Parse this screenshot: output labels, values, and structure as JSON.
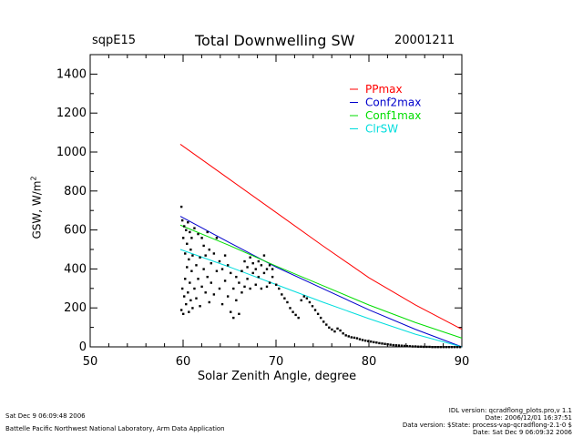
{
  "header": {
    "site": "sqpE15",
    "title": "Total Downwelling SW",
    "date": "20001211"
  },
  "footer": {
    "left_line1": "Sat Dec  9 06:09:48 2006",
    "left_line2": "Battelle Pacific Northwest National Laboratory, Arm Data Application",
    "right_line1": "IDL version: qcradflong_plots.pro,v 1.1",
    "right_line2": "Date: 2006/12/01 16:37:51",
    "right_line3": "Data version: $State: process-vap-qcradflong-2.1-0 $",
    "right_line4": "Date: Sat Dec  9 06:09:32 2006"
  },
  "colors": {
    "PPmax": "#ff0000",
    "Conf2max": "#0000cc",
    "Conf1max": "#00dd00",
    "ClrSW": "#00dddd",
    "points": "#000000",
    "axis": "#000000"
  },
  "chart_data": {
    "type": "scatter",
    "title": "Total Downwelling SW",
    "xlabel": "Solar Zenith Angle, degree",
    "ylabel": "GSW, W/m",
    "ylabel_sup": "2",
    "xlim": [
      50,
      90
    ],
    "ylim": [
      0,
      1500
    ],
    "xticks": [
      50,
      60,
      70,
      80,
      90
    ],
    "yticks": [
      0,
      200,
      400,
      600,
      800,
      1000,
      1200,
      1400
    ],
    "legend_position": "top-right",
    "series": [
      {
        "name": "PPmax",
        "kind": "line",
        "x": [
          59.7,
          65,
          70,
          75,
          80,
          85,
          90
        ],
        "y": [
          1040,
          860,
          690,
          520,
          355,
          215,
          90
        ]
      },
      {
        "name": "Conf2max",
        "kind": "line",
        "x": [
          59.7,
          65,
          70,
          75,
          80,
          85,
          90
        ],
        "y": [
          670,
          535,
          410,
          300,
          190,
          90,
          0
        ]
      },
      {
        "name": "Conf1max",
        "kind": "line",
        "x": [
          59.7,
          65,
          70,
          75,
          80,
          85,
          90
        ],
        "y": [
          625,
          520,
          415,
          315,
          215,
          125,
          45
        ]
      },
      {
        "name": "ClrSW",
        "kind": "line",
        "x": [
          59.7,
          65,
          70,
          75,
          80,
          85,
          90
        ],
        "y": [
          500,
          410,
          320,
          230,
          145,
          65,
          0
        ]
      },
      {
        "name": "observations",
        "kind": "points",
        "x": [
          59.8,
          59.8,
          59.9,
          59.9,
          60.0,
          60.0,
          60.1,
          60.1,
          60.2,
          60.2,
          60.3,
          60.3,
          60.4,
          60.4,
          60.5,
          60.5,
          60.6,
          60.6,
          60.7,
          60.7,
          60.8,
          60.8,
          60.9,
          60.9,
          61.0,
          61.0,
          61.2,
          61.2,
          61.4,
          61.4,
          61.6,
          61.6,
          61.8,
          61.8,
          62.0,
          62.0,
          62.2,
          62.2,
          62.4,
          62.4,
          62.6,
          62.6,
          62.8,
          62.8,
          63.0,
          63.0,
          63.3,
          63.3,
          63.6,
          63.6,
          63.9,
          63.9,
          64.2,
          64.2,
          64.5,
          64.5,
          64.8,
          64.8,
          65.1,
          65.1,
          65.4,
          65.4,
          65.7,
          65.7,
          66.0,
          66.0,
          66.3,
          66.3,
          66.6,
          66.6,
          66.9,
          66.9,
          67.2,
          67.2,
          67.5,
          67.5,
          67.8,
          67.8,
          68.1,
          68.1,
          68.4,
          68.4,
          68.7,
          68.7,
          69.0,
          69.0,
          69.3,
          69.3,
          69.6,
          69.6,
          70.0,
          70.3,
          70.6,
          70.9,
          71.2,
          71.5,
          71.8,
          72.1,
          72.4,
          72.7,
          73.0,
          73.3,
          73.6,
          73.9,
          74.2,
          74.5,
          74.8,
          75.1,
          75.4,
          75.7,
          76.0,
          76.3,
          76.6,
          76.9,
          77.2,
          77.5,
          77.8,
          78.1,
          78.4,
          78.7,
          79.0,
          79.3,
          79.6,
          79.9,
          80.2,
          80.5,
          80.8,
          81.1,
          81.4,
          81.7,
          82.0,
          82.3,
          82.6,
          82.9,
          83.2,
          83.5,
          83.8,
          84.1,
          84.4,
          84.7,
          85.0,
          85.3,
          85.6,
          85.9,
          86.2,
          86.5,
          86.8,
          87.1,
          87.4,
          87.7,
          88.0,
          88.3,
          88.6,
          88.9,
          89.2,
          89.5,
          89.8
        ],
        "y": [
          720,
          190,
          650,
          300,
          560,
          170,
          620,
          260,
          480,
          350,
          600,
          220,
          530,
          410,
          640,
          280,
          450,
          180,
          590,
          330,
          500,
          240,
          560,
          390,
          470,
          200,
          610,
          300,
          420,
          250,
          580,
          350,
          460,
          210,
          560,
          310,
          520,
          400,
          470,
          280,
          590,
          360,
          500,
          230,
          430,
          330,
          480,
          270,
          560,
          390,
          440,
          300,
          400,
          220,
          470,
          340,
          420,
          260,
          380,
          180,
          300,
          150,
          360,
          240,
          330,
          170,
          390,
          280,
          440,
          310,
          410,
          350,
          460,
          300,
          430,
          380,
          400,
          320,
          440,
          360,
          420,
          300,
          470,
          380,
          400,
          310,
          420,
          330,
          400,
          360,
          320,
          300,
          270,
          250,
          230,
          200,
          180,
          165,
          150,
          240,
          260,
          250,
          230,
          210,
          190,
          170,
          150,
          130,
          115,
          100,
          90,
          80,
          95,
          85,
          70,
          60,
          55,
          50,
          48,
          45,
          40,
          36,
          33,
          30,
          28,
          25,
          23,
          20,
          18,
          16,
          14,
          12,
          10,
          9,
          8,
          7,
          6,
          5,
          4,
          3,
          3,
          2,
          2,
          1,
          1,
          1,
          0,
          0,
          0,
          0,
          0,
          0,
          0,
          0,
          0,
          0,
          0
        ]
      }
    ]
  }
}
